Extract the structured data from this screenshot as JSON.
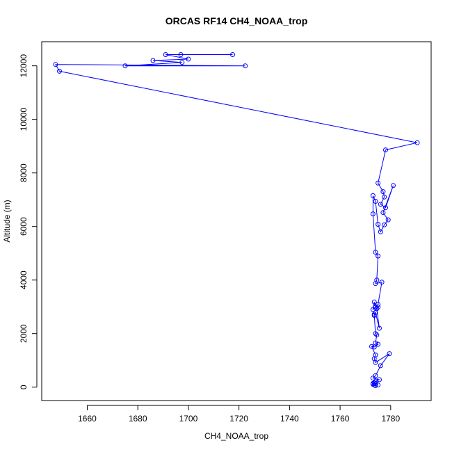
{
  "chart_data": {
    "type": "line",
    "title": "ORCAS RF14 CH4_NOAA_trop",
    "xlabel": "CH4_NOAA_trop",
    "ylabel": "Altitude (m)",
    "xlim": [
      1642,
      1796
    ],
    "ylim": [
      -500,
      12900
    ],
    "xticks": [
      1660,
      1680,
      1700,
      1720,
      1740,
      1760,
      1780
    ],
    "yticks": [
      0,
      2000,
      4000,
      6000,
      8000,
      10000,
      12000
    ],
    "grid": false,
    "markers": "open-circle",
    "color": "#0000ff",
    "series": [
      {
        "x": [
          1717.5,
          1697,
          1691,
          1700,
          1686,
          1697.5,
          1675,
          1722.5,
          1647.5,
          1649,
          1790.5,
          1778,
          1775,
          1777,
          1777.5,
          1776,
          1778,
          1781,
          1777,
          1779,
          1777.5,
          1776,
          1775,
          1774,
          1773,
          1773,
          1774,
          1775,
          1774.5,
          1774,
          1776.5,
          1775,
          1774,
          1773.5,
          1773,
          1774,
          1775,
          1774.5,
          1775.5,
          1774,
          1773.5,
          1773.5,
          1774,
          1774.5,
          1774,
          1775,
          1773.5,
          1772.5,
          1774,
          1773.5,
          1774,
          1779.5,
          1776,
          1774,
          1773,
          1775.5,
          1774,
          1773.5,
          1773,
          1774,
          1773,
          1773.5,
          1774,
          1775
        ],
        "y": [
          12420,
          12420,
          12420,
          12250,
          12200,
          12130,
          12000,
          12000,
          12050,
          11800,
          9130,
          8860,
          7620,
          7300,
          7100,
          6830,
          6700,
          7530,
          6520,
          6250,
          6060,
          5800,
          6080,
          6940,
          7150,
          6470,
          5040,
          4900,
          4000,
          3870,
          3920,
          3090,
          3000,
          3180,
          2900,
          2980,
          2990,
          2930,
          2200,
          2780,
          2720,
          2680,
          2000,
          1950,
          1650,
          1600,
          1500,
          1520,
          1200,
          1060,
          920,
          1250,
          800,
          430,
          340,
          280,
          200,
          160,
          140,
          130,
          110,
          80,
          60,
          80
        ]
      }
    ]
  }
}
